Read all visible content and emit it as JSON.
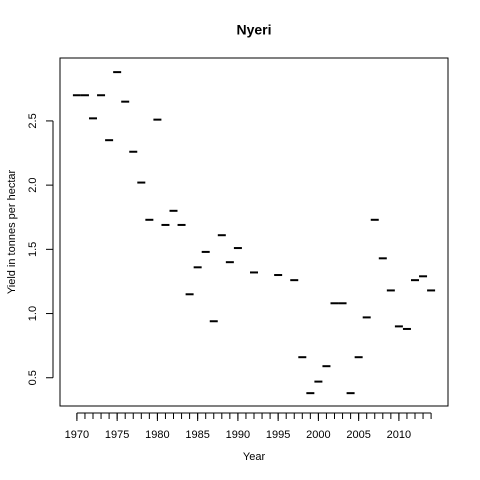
{
  "chart_data": {
    "type": "scatter",
    "title": "Nyeri",
    "xlabel": "Year",
    "ylabel": "Yield in tonnes per hectar",
    "x": [
      1970,
      1971,
      1972,
      1973,
      1974,
      1975,
      1976,
      1977,
      1978,
      1979,
      1980,
      1981,
      1982,
      1983,
      1984,
      1985,
      1986,
      1987,
      1988,
      1989,
      1990,
      1992,
      1995,
      1997,
      1998,
      1999,
      2000,
      2001,
      2002,
      2003,
      2004,
      2005,
      2006,
      2007,
      2008,
      2009,
      2010,
      2011,
      2012,
      2013,
      2014
    ],
    "values": [
      2.7,
      2.7,
      2.52,
      2.7,
      2.35,
      2.88,
      2.65,
      2.26,
      2.02,
      1.73,
      2.51,
      1.69,
      1.8,
      1.69,
      1.15,
      1.36,
      1.48,
      0.94,
      1.61,
      1.4,
      1.51,
      1.32,
      1.3,
      1.26,
      0.66,
      0.38,
      0.47,
      0.59,
      1.08,
      1.08,
      0.38,
      0.66,
      0.97,
      1.73,
      1.43,
      1.18,
      0.9,
      0.88,
      1.26,
      1.29,
      1.18
    ],
    "color": "#000000",
    "xlim": [
      1967.9,
      2016.1
    ],
    "ylim": [
      0.28,
      2.99
    ],
    "xticks": [
      1970,
      1975,
      1980,
      1985,
      1990,
      1995,
      2000,
      2005,
      2010
    ],
    "xminorticks": [
      1970,
      1971,
      1972,
      1973,
      1974,
      1975,
      1976,
      1977,
      1978,
      1979,
      1980,
      1981,
      1982,
      1983,
      1984,
      1985,
      1986,
      1987,
      1988,
      1989,
      1990,
      1991,
      1992,
      1993,
      1994,
      1995,
      1996,
      1997,
      1998,
      1999,
      2000,
      2001,
      2002,
      2003,
      2004,
      2005,
      2006,
      2007,
      2008,
      2009,
      2010,
      2011,
      2012,
      2013,
      2014
    ],
    "yticks": [
      {
        "value": 0.5,
        "label": "0.5"
      },
      {
        "value": 1,
        "label": "1.0"
      },
      {
        "value": 1.5,
        "label": "1.5"
      },
      {
        "value": 2,
        "label": "2.0"
      },
      {
        "value": 2.5,
        "label": "2.5"
      }
    ]
  }
}
